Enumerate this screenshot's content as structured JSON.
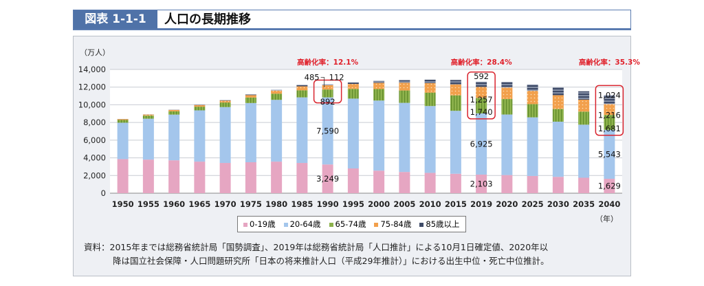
{
  "header": {
    "figure_number": "図表 1-1-1",
    "title": "人口の長期推移"
  },
  "chart_data": {
    "type": "bar",
    "stacked": true,
    "ylabel": "（万人）",
    "xlabel": "（年）",
    "ylim": [
      0,
      14000
    ],
    "yticks": [
      0,
      2000,
      4000,
      6000,
      8000,
      10000,
      12000,
      14000
    ],
    "ytick_labels": [
      "0",
      "2,000",
      "4,000",
      "6,000",
      "8,000",
      "10,000",
      "12,000",
      "14,000"
    ],
    "grid": true,
    "legend_position": "bottom",
    "categories": [
      "1950",
      "1955",
      "1960",
      "1965",
      "1970",
      "1975",
      "1980",
      "1985",
      "1990",
      "1995",
      "2000",
      "2005",
      "2010",
      "2015",
      "2019",
      "2020",
      "2025",
      "2030",
      "2035",
      "2040"
    ],
    "series": [
      {
        "name": "0-19歳",
        "color": "#e6a6c2",
        "values": [
          3856,
          3800,
          3720,
          3570,
          3420,
          3500,
          3570,
          3420,
          3249,
          2800,
          2550,
          2400,
          2300,
          2200,
          2103,
          2050,
          1950,
          1850,
          1750,
          1629
        ]
      },
      {
        "name": "20-64歳",
        "color": "#a4c6ec",
        "values": [
          4118,
          4628,
          5170,
          5800,
          6320,
          6700,
          6990,
          7420,
          7590,
          7900,
          7930,
          7820,
          7560,
          7120,
          6925,
          6850,
          6630,
          6240,
          6000,
          5543
        ]
      },
      {
        "name": "65-74歳",
        "color": "#8db24c",
        "values": [
          309,
          350,
          375,
          420,
          520,
          625,
          700,
          800,
          892,
          1100,
          1300,
          1400,
          1520,
          1750,
          1740,
          1750,
          1500,
          1430,
          1480,
          1681
        ]
      },
      {
        "name": "75-84歳",
        "color": "#f2a04c",
        "values": [
          93,
          120,
          145,
          175,
          210,
          270,
          350,
          450,
          485,
          560,
          700,
          880,
          1080,
          1240,
          1257,
          1300,
          1500,
          1570,
          1350,
          1216
        ]
      },
      {
        "name": "85歳以上",
        "color": "#3f4b68",
        "values": [
          14,
          18,
          24,
          32,
          50,
          70,
          100,
          150,
          112,
          160,
          220,
          290,
          380,
          500,
          592,
          630,
          720,
          870,
          950,
          1024
        ]
      }
    ],
    "annotations": [
      {
        "category": "1990",
        "text": "高齢化率：12.1%",
        "labels": [
          "3,249",
          "7,590",
          "892",
          "485",
          "112"
        ]
      },
      {
        "category": "2019",
        "text": "高齢化率：28.4%",
        "labels": [
          "2,103",
          "6,925",
          "1,740",
          "1,257",
          "592"
        ]
      },
      {
        "category": "2040",
        "text": "高齢化率：35.3%",
        "labels": [
          "1,629",
          "5,543",
          "1,681",
          "1,216",
          "1,024"
        ]
      }
    ]
  },
  "source": {
    "line1": "資料：2015年までは総務省統計局「国勢調査」、2019年は総務省統計局「人口推計」による10月1日確定値、2020年以",
    "line2": "降は国立社会保障・人口問題研究所「日本の将来推計人口（平成29年推計）」における出生中位・死亡中位推計。"
  }
}
